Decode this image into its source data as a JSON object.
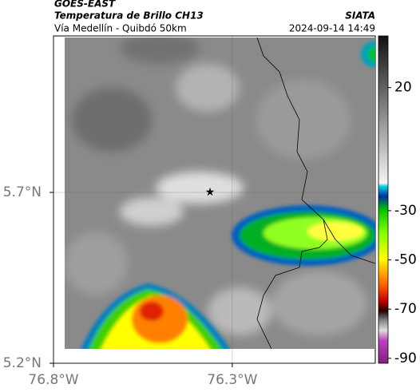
{
  "map_data": {
    "satellite": "GOES-EAST",
    "title": "Temperatura de Brillo CH13",
    "subtitle": "Vía Medellín - Quibdó 50km",
    "source": "SIATA",
    "timestamp": "2024-09-14 14:49",
    "xlim": [
      -76.8,
      -75.9
    ],
    "ylim": [
      5.2,
      6.158
    ],
    "xticks": [
      {
        "value": -76.8,
        "label": "76.8°W"
      },
      {
        "value": -76.3,
        "label": "76.3°W"
      }
    ],
    "yticks": [
      {
        "value": 5.2,
        "label": "5.2°N"
      },
      {
        "value": 5.7,
        "label": "5.7°N"
      }
    ],
    "colorbar": {
      "lim": [
        -92,
        41
      ],
      "ticks": [
        20,
        -30,
        -50,
        -70,
        -90
      ]
    }
  }
}
